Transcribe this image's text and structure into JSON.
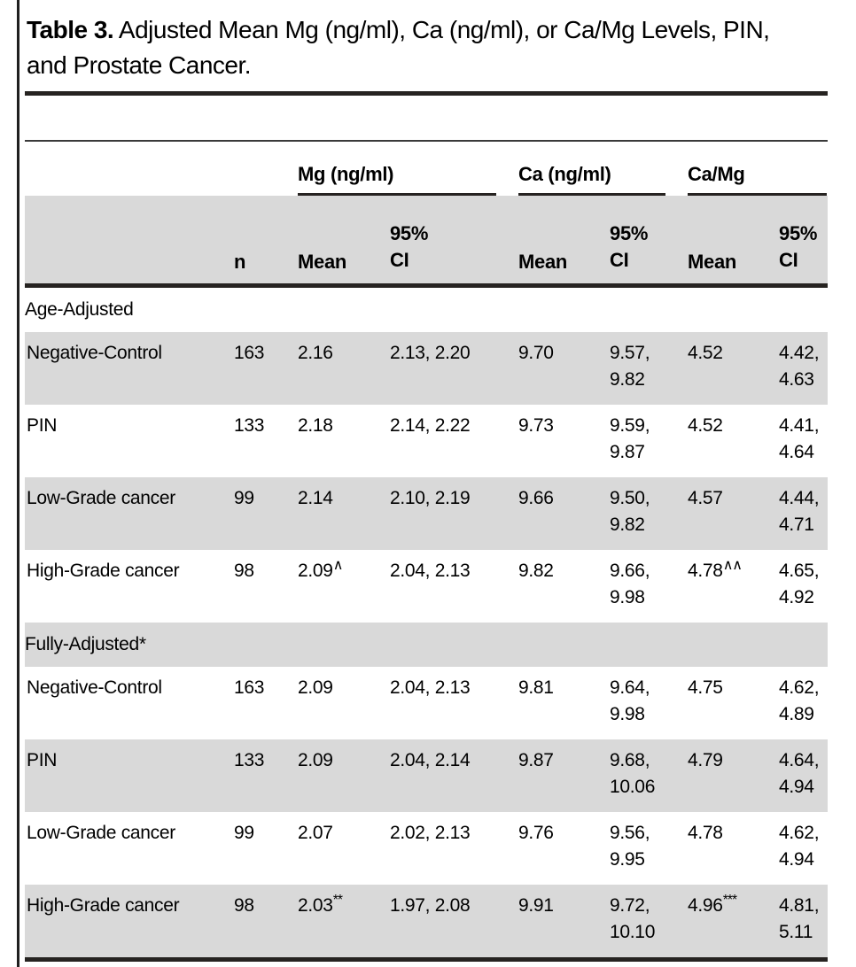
{
  "caption": {
    "label": "Table 3.",
    "text": "Adjusted Mean Mg (ng/ml), Ca (ng/ml), or Ca/Mg Levels, PIN, and Prostate Cancer."
  },
  "table": {
    "groups": [
      {
        "label": "Mg (ng/ml)"
      },
      {
        "label": "Ca (ng/ml)"
      },
      {
        "label": "Ca/Mg"
      }
    ],
    "columns": {
      "n": "n",
      "mean": "Mean",
      "ci": "95% CI"
    },
    "sections": [
      {
        "label": "Age-Adjusted",
        "rows": [
          {
            "label": "Negative-Control",
            "n": "163",
            "mg_mean": "2.16",
            "mg_ci": "2.13, 2.20",
            "ca_mean": "9.70",
            "ca_ci": "9.57, 9.82",
            "cm_mean": "4.52",
            "cm_ci": "4.42, 4.63"
          },
          {
            "label": "PIN",
            "n": "133",
            "mg_mean": "2.18",
            "mg_ci": "2.14, 2.22",
            "ca_mean": "9.73",
            "ca_ci": "9.59, 9.87",
            "cm_mean": "4.52",
            "cm_ci": "4.41, 4.64"
          },
          {
            "label": "Low-Grade cancer",
            "n": "99",
            "mg_mean": "2.14",
            "mg_ci": "2.10, 2.19",
            "ca_mean": "9.66",
            "ca_ci": "9.50, 9.82",
            "cm_mean": "4.57",
            "cm_ci": "4.44, 4.71"
          },
          {
            "label": "High-Grade cancer",
            "n": "98",
            "mg_mean": "2.09",
            "mg_sup": "∧",
            "mg_ci": "2.04, 2.13",
            "ca_mean": "9.82",
            "ca_ci": "9.66, 9.98",
            "cm_mean": "4.78",
            "cm_sup": "∧∧",
            "cm_ci": "4.65, 4.92"
          }
        ]
      },
      {
        "label": "Fully-Adjusted*",
        "rows": [
          {
            "label": "Negative-Control",
            "n": "163",
            "mg_mean": "2.09",
            "mg_ci": "2.04, 2.13",
            "ca_mean": "9.81",
            "ca_ci": "9.64, 9.98",
            "cm_mean": "4.75",
            "cm_ci": "4.62, 4.89"
          },
          {
            "label": "PIN",
            "n": "133",
            "mg_mean": "2.09",
            "mg_ci": "2.04, 2.14",
            "ca_mean": "9.87",
            "ca_ci": "9.68, 10.06",
            "cm_mean": "4.79",
            "cm_ci": "4.64, 4.94"
          },
          {
            "label": "Low-Grade cancer",
            "n": "99",
            "mg_mean": "2.07",
            "mg_ci": "2.02, 2.13",
            "ca_mean": "9.76",
            "ca_ci": "9.56, 9.95",
            "cm_mean": "4.78",
            "cm_ci": "4.62, 4.94"
          },
          {
            "label": "High-Grade cancer",
            "n": "98",
            "mg_mean": "2.03",
            "mg_sup": "**",
            "mg_ci": "1.97, 2.08",
            "ca_mean": "9.91",
            "ca_ci": "9.72, 10.10",
            "cm_mean": "4.96",
            "cm_sup": "***",
            "cm_ci": "4.81, 5.11"
          }
        ]
      }
    ]
  },
  "colors": {
    "row_shade": "#d9d9d9",
    "rule_dark": "#262321",
    "text": "#000000"
  }
}
